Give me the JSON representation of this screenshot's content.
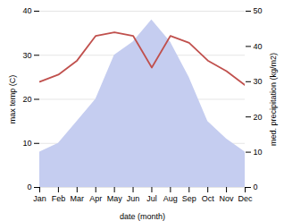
{
  "chart_data": {
    "type": "area",
    "xlabel": "date (month)",
    "ylabel": "max temp (C)",
    "y2label": "med. precipitation (kg/m2)",
    "x": [
      1,
      2,
      3,
      4,
      5,
      6,
      7,
      8,
      9,
      10,
      11,
      12
    ],
    "xlim": [
      1,
      12
    ],
    "xticks": [
      {
        "value": 1,
        "label": "Jan"
      },
      {
        "value": 2,
        "label": "Feb"
      },
      {
        "value": 3,
        "label": "Mar"
      },
      {
        "value": 4,
        "label": "Apr"
      },
      {
        "value": 5,
        "label": "May"
      },
      {
        "value": 6,
        "label": "Jun"
      },
      {
        "value": 7,
        "label": "Jul"
      },
      {
        "value": 8,
        "label": "Aug"
      },
      {
        "value": 9,
        "label": "Sep"
      },
      {
        "value": 10,
        "label": "Oct"
      },
      {
        "value": 11,
        "label": "Nov"
      },
      {
        "value": 12,
        "label": "Dec"
      }
    ],
    "ylim": [
      0,
      40
    ],
    "yticks": [
      0,
      10,
      20,
      30,
      40
    ],
    "y2lim": [
      0,
      50
    ],
    "y2ticks": [
      0,
      10,
      20,
      30,
      40,
      50
    ],
    "grid": true,
    "series": [
      {
        "type": "area",
        "color": "#c5cdf0",
        "values": [
          8,
          10,
          15,
          20,
          30,
          33,
          38,
          33,
          25,
          15,
          11,
          8
        ]
      },
      {
        "type": "line",
        "axis": "y2",
        "color": "#c0504d",
        "values": [
          30,
          32,
          36,
          43,
          44,
          43,
          34,
          43,
          41,
          36,
          33,
          29
        ]
      }
    ]
  }
}
